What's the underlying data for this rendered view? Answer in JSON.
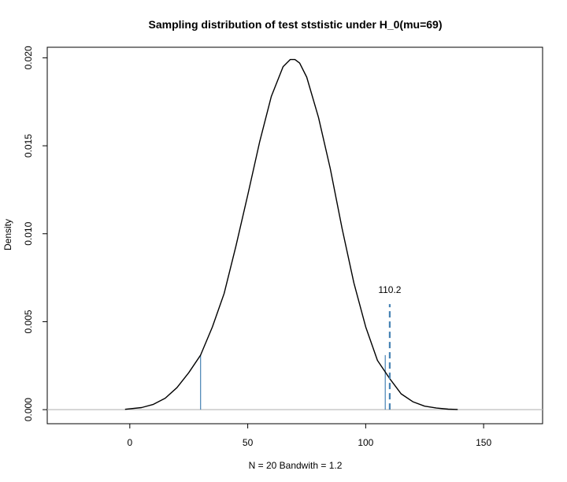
{
  "chart_data": {
    "type": "line",
    "title": "Sampling distribution of test ststistic under H_0(mu=69)",
    "xlabel": "N = 20 Bandwith = 1.2",
    "ylabel": "Density",
    "xlim": [
      -35,
      175
    ],
    "ylim": [
      -0.0008,
      0.0206
    ],
    "x_ticks": [
      0,
      50,
      100,
      150
    ],
    "x_tick_labels": [
      "0",
      "50",
      "100",
      "150"
    ],
    "y_ticks": [
      0.0,
      0.005,
      0.01,
      0.015,
      0.02
    ],
    "y_tick_labels": [
      "0.000",
      "0.005",
      "0.010",
      "0.015",
      "0.020"
    ],
    "grid": false,
    "baseline_y": 0,
    "series": [
      {
        "color": "#000000",
        "x": [
          -2,
          5,
          10,
          15,
          20,
          25,
          30,
          35,
          40,
          45,
          50,
          55,
          60,
          65,
          68,
          70,
          72,
          75,
          80,
          85,
          90,
          95,
          100,
          105,
          110,
          115,
          120,
          125,
          130,
          135,
          139
        ],
        "y": [
          2e-05,
          0.00012,
          0.0003,
          0.00065,
          0.00125,
          0.0021,
          0.0031,
          0.0047,
          0.0066,
          0.0093,
          0.0122,
          0.0152,
          0.0178,
          0.0195,
          0.0199,
          0.0199,
          0.0197,
          0.0189,
          0.0166,
          0.0137,
          0.0103,
          0.0072,
          0.0047,
          0.0028,
          0.0018,
          0.0009,
          0.00045,
          0.0002,
          9e-05,
          3e-05,
          1e-05
        ]
      }
    ],
    "critical_lines": [
      {
        "x": 30,
        "y": 0.0031,
        "color": "#4682b4"
      },
      {
        "x": 108.3,
        "y": 0.0031,
        "color": "#4682b4"
      }
    ],
    "observed_line": {
      "x": 110.2,
      "y": 0.006,
      "color": "#4682b4",
      "style": "dashed"
    },
    "annotation": {
      "text": "110.2",
      "x": 110.2,
      "y": 0.0068
    }
  }
}
